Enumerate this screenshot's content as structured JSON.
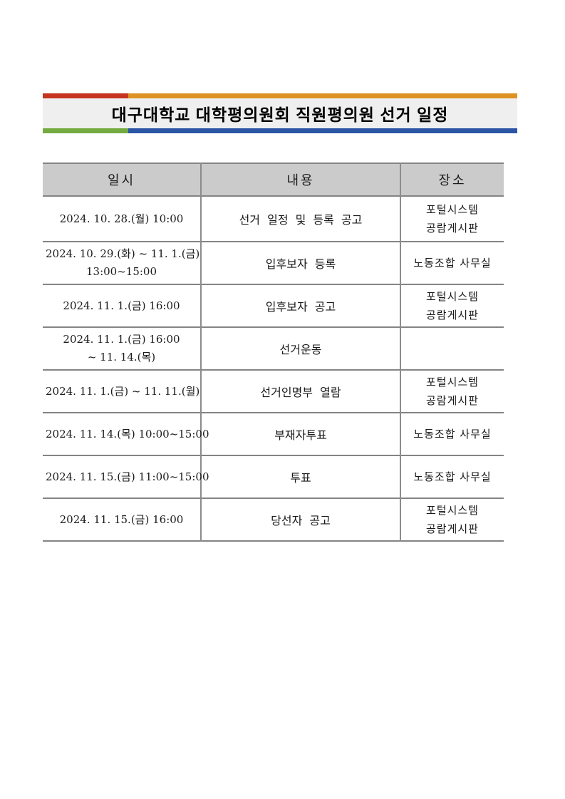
{
  "title": {
    "text": "대구대학교 대학평의원회 직원평의원 선거 일정"
  },
  "colors": {
    "bar_top_left_red": "#c5341f",
    "bar_top_right_orange": "#dd9224",
    "bar_bottom_left_green": "#74ab40",
    "bar_bottom_right_blue": "#2d55a5",
    "banner_background": "#efefef",
    "table_header_background": "#cbcbcb",
    "table_border": "#848484"
  },
  "table": {
    "headers": [
      "일시",
      "내용",
      "장소"
    ],
    "rows": [
      {
        "when": [
          "2024. 10. 28.(월) 10:00"
        ],
        "what": [
          "선거 일정 및 등록 공고"
        ],
        "where": [
          "포털시스템",
          "공람게시판"
        ]
      },
      {
        "when": [
          "2024. 10. 29.(화) ~ 11. 1.(금)",
          "13:00~15:00"
        ],
        "what": [
          "입후보자 등록"
        ],
        "where": [
          "노동조합 사무실"
        ]
      },
      {
        "when": [
          "2024. 11. 1.(금) 16:00"
        ],
        "what": [
          "입후보자 공고"
        ],
        "where": [
          "포털시스템",
          "공람게시판"
        ]
      },
      {
        "when": [
          "2024. 11. 1.(금) 16:00",
          "~ 11. 14.(목)"
        ],
        "what": [
          "선거운동"
        ],
        "where": []
      },
      {
        "when": [
          "2024. 11. 1.(금) ~ 11. 11.(월)"
        ],
        "what": [
          "선거인명부 열람"
        ],
        "where": [
          "포털시스템",
          "공람게시판"
        ]
      },
      {
        "when": [
          "2024. 11. 14.(목) 10:00~15:00"
        ],
        "what": [
          "부재자투표"
        ],
        "where": [
          "노동조합 사무실"
        ]
      },
      {
        "when": [
          "2024. 11. 15.(금) 11:00~15:00"
        ],
        "what": [
          "투표"
        ],
        "where": [
          "노동조합 사무실"
        ]
      },
      {
        "when": [
          "2024. 11. 15.(금) 16:00"
        ],
        "what": [
          "당선자 공고"
        ],
        "where": [
          "포털시스템",
          "공람게시판"
        ]
      }
    ]
  }
}
